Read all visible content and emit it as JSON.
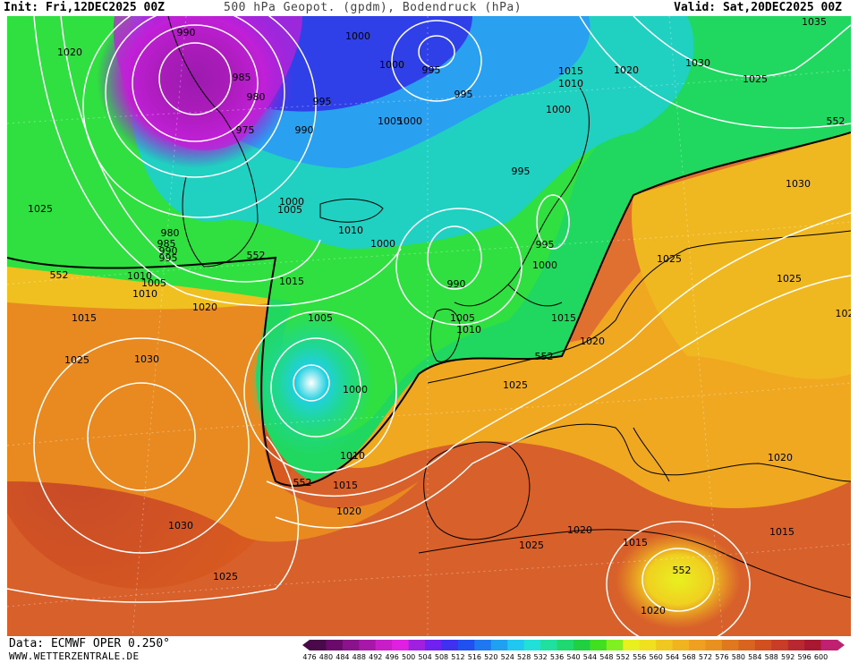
{
  "header": {
    "init": "Init: Fri,12DEC2025 00Z",
    "title": "500 hPa Geopot. (gpdm), Bodendruck (hPa)",
    "valid": "Valid: Sat,20DEC2025 00Z"
  },
  "footer": {
    "source": "Data: ECMWF OPER 0.250°",
    "site": "WWW.WETTERZENTRALE.DE"
  },
  "legend": {
    "values": [
      "476",
      "480",
      "484",
      "488",
      "492",
      "496",
      "500",
      "504",
      "508",
      "512",
      "516",
      "520",
      "524",
      "528",
      "532",
      "536",
      "540",
      "544",
      "548",
      "552",
      "556",
      "560",
      "564",
      "568",
      "572",
      "576",
      "580",
      "584",
      "588",
      "592",
      "596",
      "600"
    ],
    "colors": [
      "#4a0a4a",
      "#6a0a6a",
      "#8a128a",
      "#a818a8",
      "#c81ec8",
      "#e020e0",
      "#a020e0",
      "#7020f0",
      "#4030f0",
      "#2050f0",
      "#2078f0",
      "#20a0f0",
      "#20c8f0",
      "#20e0d8",
      "#20e0a0",
      "#20d870",
      "#20d040",
      "#40e020",
      "#80f020",
      "#e8f020",
      "#f0e020",
      "#f0c820",
      "#f0b420",
      "#f0a020",
      "#e89020",
      "#e07820",
      "#d86420",
      "#d05020",
      "#c83c28",
      "#b82830",
      "#a81830",
      "#c02070"
    ]
  },
  "map": {
    "colors": {
      "sea": "#7aa8c4",
      "coast": "#000000",
      "isobar": "#ffffff",
      "contour552": "#000000"
    },
    "pressure_labels": [
      {
        "text": "990"
      },
      {
        "text": "1000"
      },
      {
        "text": "1020"
      },
      {
        "text": "985"
      },
      {
        "text": "980"
      },
      {
        "text": "975"
      },
      {
        "text": "995"
      },
      {
        "text": "990"
      },
      {
        "text": "1000"
      },
      {
        "text": "995"
      },
      {
        "text": "1005"
      },
      {
        "text": "1000"
      },
      {
        "text": "995"
      },
      {
        "text": "1015"
      },
      {
        "text": "1010"
      },
      {
        "text": "1020"
      },
      {
        "text": "1000"
      },
      {
        "text": "1030"
      },
      {
        "text": "1025"
      },
      {
        "text": "1035"
      },
      {
        "text": "552"
      },
      {
        "text": "1025"
      },
      {
        "text": "1000"
      },
      {
        "text": "1005"
      },
      {
        "text": "980"
      },
      {
        "text": "985"
      },
      {
        "text": "990"
      },
      {
        "text": "995"
      },
      {
        "text": "1010"
      },
      {
        "text": "1000"
      },
      {
        "text": "995"
      },
      {
        "text": "995"
      },
      {
        "text": "1000"
      },
      {
        "text": "1030"
      },
      {
        "text": "552"
      },
      {
        "text": "1005"
      },
      {
        "text": "1010"
      },
      {
        "text": "1010"
      },
      {
        "text": "552"
      },
      {
        "text": "990"
      },
      {
        "text": "1025"
      },
      {
        "text": "1015"
      },
      {
        "text": "1020"
      },
      {
        "text": "1025"
      },
      {
        "text": "102"
      },
      {
        "text": "1015"
      },
      {
        "text": "1005"
      },
      {
        "text": "1005"
      },
      {
        "text": "1010"
      },
      {
        "text": "1015"
      },
      {
        "text": "1020"
      },
      {
        "text": "1025"
      },
      {
        "text": "1030"
      },
      {
        "text": "552"
      },
      {
        "text": "1000"
      },
      {
        "text": "1025"
      },
      {
        "text": "1020"
      },
      {
        "text": "1010"
      },
      {
        "text": "552"
      },
      {
        "text": "1015"
      },
      {
        "text": "1020"
      },
      {
        "text": "1030"
      },
      {
        "text": "1025"
      },
      {
        "text": "1020"
      },
      {
        "text": "1015"
      },
      {
        "text": "1025"
      },
      {
        "text": "552"
      },
      {
        "text": "1020"
      },
      {
        "text": "1015"
      },
      {
        "text": "1020"
      }
    ]
  }
}
